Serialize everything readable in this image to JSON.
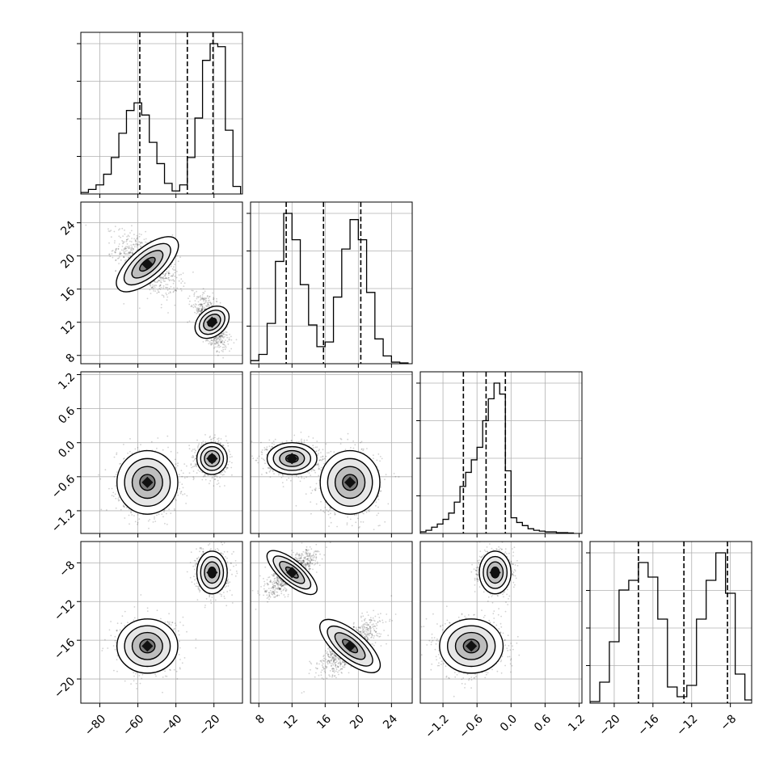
{
  "chart_data": {
    "type": "corner",
    "n_params": 4,
    "grid": true,
    "xlabel": "",
    "ylabel": "",
    "axes": [
      {
        "range": [
          -90,
          -5
        ],
        "ticks": [
          -80,
          -60,
          -40,
          -20
        ],
        "tick_labels": [
          "−80",
          "−60",
          "−40",
          "−20"
        ]
      },
      {
        "range": [
          7,
          26.5
        ],
        "ticks": [
          8,
          12,
          16,
          20,
          24
        ],
        "tick_labels": [
          "8",
          "12",
          "16",
          "20",
          "24"
        ]
      },
      {
        "range": [
          -1.6,
          1.25
        ],
        "ticks": [
          -1.2,
          -0.6,
          0.0,
          0.6,
          1.2
        ],
        "tick_labels": [
          "−1.2",
          "−0.6",
          "0.0",
          "0.6",
          "1.2"
        ]
      },
      {
        "range": [
          -22.5,
          -5.8
        ],
        "ticks": [
          -20,
          -16,
          -12,
          -8
        ],
        "tick_labels": [
          "−20",
          "−16",
          "−12",
          "−8"
        ]
      }
    ],
    "histograms": [
      {
        "param": 0,
        "quantiles": [
          -59,
          -34,
          -20.5
        ],
        "bins": [
          -90,
          -86,
          -82,
          -78,
          -74,
          -70,
          -66,
          -62,
          -58,
          -54,
          -50,
          -46,
          -42,
          -38,
          -34,
          -30,
          -26,
          -22,
          -18,
          -14,
          -10,
          -6
        ],
        "counts": [
          0.01,
          0.03,
          0.06,
          0.13,
          0.24,
          0.4,
          0.55,
          0.6,
          0.52,
          0.34,
          0.2,
          0.07,
          0.02,
          0.06,
          0.24,
          0.5,
          0.88,
          0.99,
          0.97,
          0.42,
          0.05
        ]
      },
      {
        "param": 1,
        "quantiles": [
          11.3,
          15.8,
          20.3
        ],
        "bins": [
          7,
          8,
          9,
          10,
          11,
          12,
          13,
          14,
          15,
          16,
          17,
          18,
          19,
          20,
          21,
          22,
          23,
          24,
          25,
          26
        ],
        "counts": [
          0.02,
          0.06,
          0.26,
          0.66,
          0.97,
          0.8,
          0.51,
          0.25,
          0.11,
          0.14,
          0.43,
          0.74,
          0.93,
          0.8,
          0.46,
          0.16,
          0.05,
          0.01,
          0.005
        ]
      },
      {
        "param": 2,
        "quantiles": [
          -0.84,
          -0.44,
          -0.1
        ],
        "bins": [
          -1.6,
          -1.5,
          -1.4,
          -1.3,
          -1.2,
          -1.1,
          -1.0,
          -0.9,
          -0.8,
          -0.7,
          -0.6,
          -0.5,
          -0.4,
          -0.3,
          -0.2,
          -0.1,
          0.0,
          0.1,
          0.2,
          0.3,
          0.4,
          0.5,
          0.6,
          0.7,
          0.8,
          0.9,
          1.0,
          1.1
        ],
        "counts": [
          0.01,
          0.02,
          0.04,
          0.06,
          0.09,
          0.13,
          0.2,
          0.3,
          0.39,
          0.47,
          0.55,
          0.72,
          0.86,
          0.96,
          0.89,
          0.4,
          0.1,
          0.07,
          0.05,
          0.03,
          0.02,
          0.015,
          0.01,
          0.01,
          0.005,
          0.005,
          0.003
        ]
      },
      {
        "param": 3,
        "quantiles": [
          -17.5,
          -12.8,
          -8.3
        ],
        "bins": [
          -22.5,
          -21.5,
          -20.5,
          -19.5,
          -18.5,
          -17.5,
          -16.5,
          -15.5,
          -14.5,
          -13.5,
          -12.5,
          -11.5,
          -10.5,
          -9.5,
          -8.5,
          -7.5,
          -6.5,
          -5.5
        ],
        "counts": [
          0.01,
          0.13,
          0.38,
          0.7,
          0.76,
          0.87,
          0.78,
          0.52,
          0.1,
          0.04,
          0.11,
          0.52,
          0.76,
          0.93,
          0.68,
          0.18,
          0.02
        ]
      }
    ],
    "clusters": [
      {
        "mean": [
          -55,
          19,
          -0.7,
          -16.6
        ],
        "sd": [
          8,
          1.8,
          0.28,
          1.4
        ]
      },
      {
        "mean": [
          -21,
          12,
          -0.28,
          -9
        ],
        "sd": [
          4,
          1.5,
          0.14,
          1.1
        ]
      }
    ]
  }
}
